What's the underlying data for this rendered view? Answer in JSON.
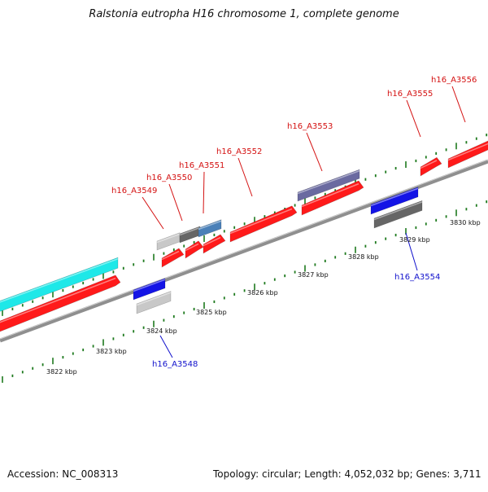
{
  "title": "Ralstonia eutropha H16 chromosome 1, complete genome",
  "footer": {
    "accession": "Accession: NC_008313",
    "stats": "Topology: circular; Length: 4,052,032 bp; Genes: 3,711"
  },
  "colors": {
    "backbone": "#8f8f8f",
    "ticks": "#1e7a1e",
    "forward_label": "#d41111",
    "reverse_label": "#1010cc",
    "red_gene": "#ff1a1a",
    "cyan_gene": "#1ee8e8",
    "blue_gene": "#1414e6",
    "steelblue_gene": "#4a80b8",
    "darkgray_gene": "#666666",
    "lightgray_gene": "#c8c8c8"
  },
  "scale_labels": [
    "3822 kbp",
    "3823 kbp",
    "3824 kbp",
    "3825 kbp",
    "3826 kbp",
    "3827 kbp",
    "3828 kbp",
    "3829 kbp",
    "3830 kbp"
  ],
  "forward_gene_labels": [
    "h16_A3549",
    "h16_A3550",
    "h16_A3551",
    "h16_A3552",
    "h16_A3553",
    "h16_A3555",
    "h16_A3556"
  ],
  "reverse_gene_labels": [
    "h16_A3548",
    "h16_A3554"
  ]
}
